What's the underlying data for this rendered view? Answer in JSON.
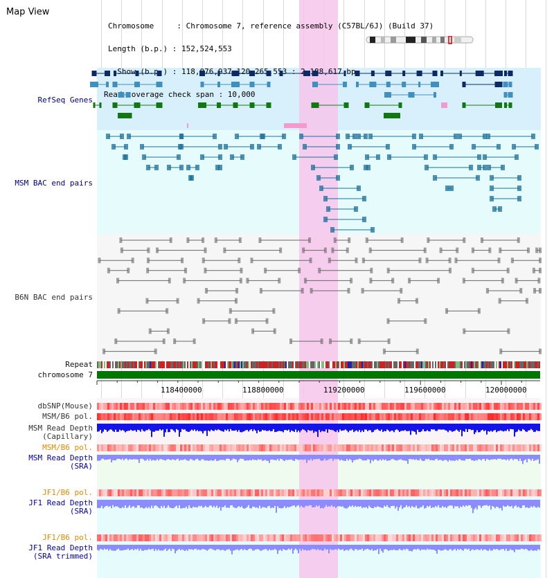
{
  "header": {
    "title": "Map View",
    "info_line1": "Chromosome     : Chromosome 7, reference assembly (C57BL/6J) (Build 37)",
    "info_line2": "Length (b.p.) : 152,524,553",
    "info_line3": "  Show (b.p.) : 118,076,937-120,265,553 : 2,188,617 bp",
    "info_line4": "Read coverage check span : 10,000"
  },
  "tracks": {
    "refseq": "RefSeq Genes",
    "msm_bac": "MSM BAC end pairs",
    "b6n_bac": "B6N BAC end pairs",
    "repeat": "Repeat",
    "chromosome": "chromosome 7",
    "dbsnp": "dbSNP(Mouse)",
    "msm_b6_pol": "MSM/B6 pol.",
    "msm_read_depth_cap_1": "MSM Read Depth",
    "msm_read_depth_cap_2": "(Capillary)",
    "msm_b6_pol_2": "MSM/B6 pol.",
    "msm_read_depth_sra_1": "MSM Read Depth",
    "msm_read_depth_sra_2": "(SRA)",
    "jf1_b6_pol": "JF1/B6 pol.",
    "jf1_read_depth_sra_1": "JF1 Read Depth",
    "jf1_read_depth_sra_2": "(SRA)",
    "jf1_b6_pol_2": "JF1/B6 pol.",
    "jf1_read_depth_trim_1": "JF1 Read Depth",
    "jf1_read_depth_trim_2": "(SRA trimmed)"
  },
  "ruler": {
    "ticks": [
      "118400000",
      "118800000",
      "119200000",
      "119600000",
      "120000000"
    ]
  },
  "colors": {
    "refseq_bg": "#d8f0fb",
    "msm_bg": "#e6fbfb",
    "b6n_bg": "#f6f6f6",
    "highlight": "#f7c6ec",
    "gene_dark": "#0b2a66",
    "gene_mid": "#3f8fbf",
    "gene_green": "#117711",
    "chrom_green": "#007700",
    "msm_feature": "#1a6f9a",
    "b6n_feature": "#666666",
    "depth_blue": "#1414e6",
    "depth_light": "#8c8cff"
  }
}
